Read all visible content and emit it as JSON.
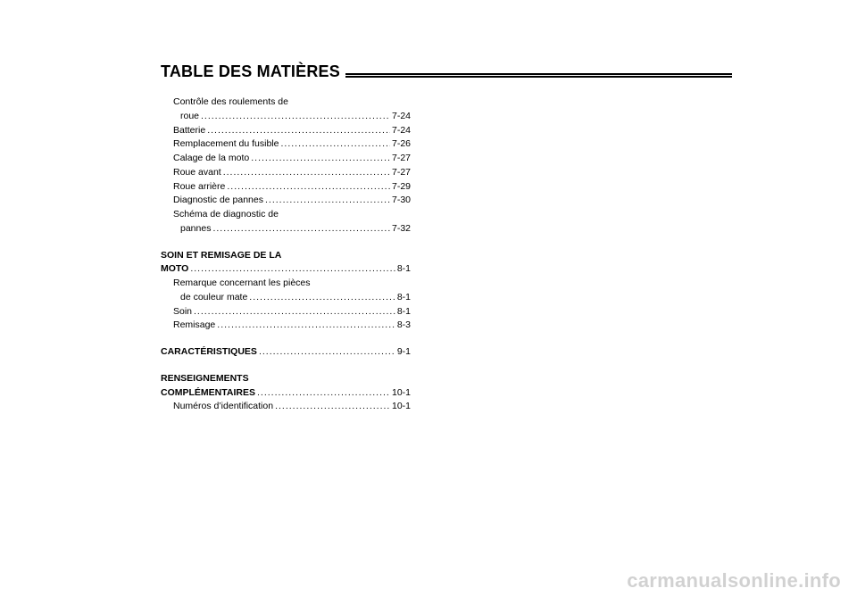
{
  "title": "TABLE DES MATIÈRES",
  "col": {
    "items": [
      {
        "label_line1": "Contrôle des roulements de",
        "label_line2": "roue",
        "page": "7-24",
        "sub": true,
        "multiline": true
      },
      {
        "label": "Batterie",
        "page": "7-24",
        "sub": true
      },
      {
        "label": "Remplacement du fusible",
        "page": "7-26",
        "sub": true
      },
      {
        "label": "Calage de la moto",
        "page": "7-27",
        "sub": true
      },
      {
        "label": "Roue avant",
        "page": "7-27",
        "sub": true
      },
      {
        "label": "Roue arrière",
        "page": "7-29",
        "sub": true
      },
      {
        "label": "Diagnostic de pannes",
        "page": "7-30",
        "sub": true
      },
      {
        "label_line1": "Schéma de diagnostic de",
        "label_line2": "pannes",
        "page": "7-32",
        "sub": true,
        "multiline": true
      }
    ],
    "section2_head_line1": "SOIN ET REMISAGE DE LA",
    "section2_head_line2": "MOTO",
    "section2_head_page": "8-1",
    "section2_items": [
      {
        "label_line1": "Remarque concernant les pièces",
        "label_line2": "de couleur mate",
        "page": "8-1",
        "sub": true,
        "multiline": true
      },
      {
        "label": "Soin",
        "page": "8-1",
        "sub": true
      },
      {
        "label": "Remisage",
        "page": "8-3",
        "sub": true
      }
    ],
    "section3_head": "CARACTÉRISTIQUES",
    "section3_page": "9-1",
    "section4_head_line1": "RENSEIGNEMENTS",
    "section4_head_line2": "COMPLÉMENTAIRES",
    "section4_head_page": "10-1",
    "section4_items": [
      {
        "label": "Numéros d’identification",
        "page": "10-1",
        "sub": true
      }
    ]
  },
  "watermark": "carmanualsonline.info"
}
